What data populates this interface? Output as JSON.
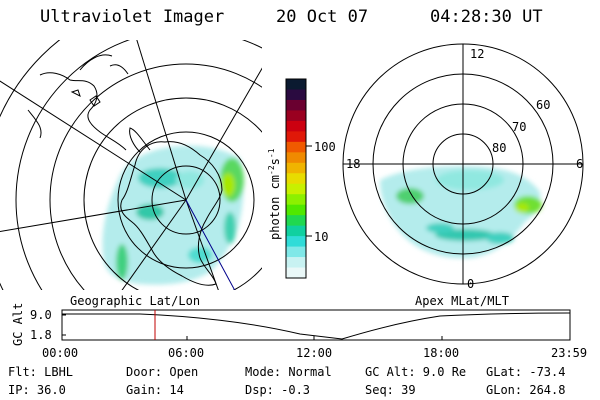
{
  "header": {
    "title": "Ultraviolet Imager",
    "date": "20 Oct 07",
    "time": "04:28:30 UT"
  },
  "left_map": {
    "label": "Geographic Lat/Lon"
  },
  "right_map": {
    "label": "Apex MLat/MLT",
    "mlt_labels": [
      "12",
      "18",
      "6",
      "0"
    ],
    "lat_labels": [
      "60",
      "70",
      "80"
    ]
  },
  "colorbar": {
    "unit_label": "photon cm",
    "unit_sup1": "-2",
    "unit_mid": "s",
    "unit_sup2": "-1",
    "ticks": [
      "100",
      "10"
    ],
    "colors": [
      "#0b1a30",
      "#2a0a40",
      "#6a0030",
      "#9a0020",
      "#cc0010",
      "#e01808",
      "#f05a00",
      "#f08a00",
      "#f0b400",
      "#e8dc00",
      "#c8f000",
      "#8cf000",
      "#50e800",
      "#20d850",
      "#10d0a0",
      "#30dcd8",
      "#80e8e8",
      "#c8f2f2",
      "#eaf8f8"
    ]
  },
  "timeline": {
    "axis_label": "GC Alt",
    "y_ticks": [
      "9.0",
      "1.8"
    ],
    "x_ticks": [
      "00:00",
      "06:00",
      "12:00",
      "18:00",
      "23:59"
    ],
    "current_time_color": "#c00000"
  },
  "info": {
    "flt": "Flt: LBHL",
    "ip": "IP: 36.0",
    "door": "Door: Open",
    "gain": "Gain: 14",
    "mode": "Mode: Normal",
    "dsp": "Dsp:    -0.3",
    "gcalt": "GC Alt: 9.0 Re",
    "seq": "Seq: 39",
    "glat": "GLat: -73.4",
    "glon": "GLon: 264.8"
  }
}
